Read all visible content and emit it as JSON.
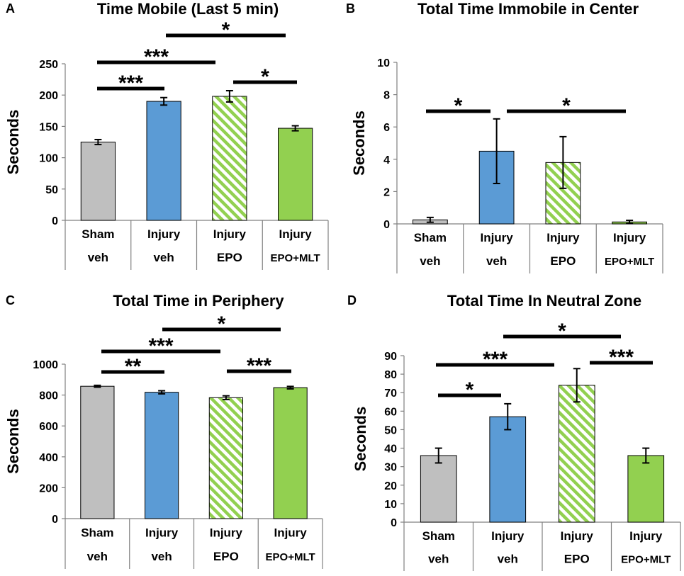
{
  "colors": {
    "sham": "#bfbfbf",
    "injury_veh": "#5b9bd5",
    "injury_epo_stripe": "#92d050",
    "injury_epo_mlt": "#92d050",
    "axis": "#808080",
    "bar_stroke": "#000000"
  },
  "chart_data": [
    {
      "panel": "A",
      "type": "bar",
      "title": "Time Mobile (Last 5 min)",
      "ylabel": "Seconds",
      "ylim": [
        0,
        250
      ],
      "yticks": [
        0,
        50,
        100,
        150,
        200,
        250
      ],
      "categories": [
        {
          "line1": "Sham",
          "line2": "veh"
        },
        {
          "line1": "Injury",
          "line2": "veh"
        },
        {
          "line1": "Injury",
          "line2": "EPO"
        },
        {
          "line1": "Injury",
          "line2": "EPO+MLT"
        }
      ],
      "values": [
        125,
        190,
        198,
        147
      ],
      "errors": [
        4,
        6,
        9,
        4
      ],
      "significance": [
        {
          "from": 0,
          "to": 1,
          "label": "***"
        },
        {
          "from": 0,
          "to": 2,
          "label": "***"
        },
        {
          "from": 1,
          "to": 3,
          "label": "*"
        },
        {
          "from": 2,
          "to": 3,
          "label": "*"
        }
      ]
    },
    {
      "panel": "B",
      "type": "bar",
      "title": "Total Time Immobile in Center",
      "ylabel": "Seconds",
      "ylim": [
        0,
        10
      ],
      "yticks": [
        0,
        2,
        4,
        6,
        8,
        10
      ],
      "categories": [
        {
          "line1": "Sham",
          "line2": "veh"
        },
        {
          "line1": "Injury",
          "line2": "veh"
        },
        {
          "line1": "Injury",
          "line2": "EPO"
        },
        {
          "line1": "Injury",
          "line2": "EPO+MLT"
        }
      ],
      "values": [
        0.25,
        4.5,
        3.8,
        0.12
      ],
      "errors": [
        0.15,
        2.0,
        1.6,
        0.1
      ],
      "significance": [
        {
          "from": 0,
          "to": 1,
          "label": "*"
        },
        {
          "from": 1,
          "to": 3,
          "label": "*"
        }
      ]
    },
    {
      "panel": "C",
      "type": "bar",
      "title": "Total Time in Periphery",
      "ylabel": "Seconds",
      "ylim": [
        0,
        1000
      ],
      "yticks": [
        0,
        200,
        400,
        600,
        800,
        1000
      ],
      "categories": [
        {
          "line1": "Sham",
          "line2": "veh"
        },
        {
          "line1": "Injury",
          "line2": "veh"
        },
        {
          "line1": "Injury",
          "line2": "EPO"
        },
        {
          "line1": "Injury",
          "line2": "EPO+MLT"
        }
      ],
      "values": [
        857,
        818,
        783,
        848
      ],
      "errors": [
        6,
        10,
        12,
        8
      ],
      "significance": [
        {
          "from": 0,
          "to": 1,
          "label": "**"
        },
        {
          "from": 0,
          "to": 2,
          "label": "***"
        },
        {
          "from": 1,
          "to": 3,
          "label": "*"
        },
        {
          "from": 2,
          "to": 3,
          "label": "***"
        }
      ]
    },
    {
      "panel": "D",
      "type": "bar",
      "title": "Total Time In Neutral Zone",
      "ylabel": "Seconds",
      "ylim": [
        0,
        90
      ],
      "yticks": [
        0,
        10,
        20,
        30,
        40,
        50,
        60,
        70,
        80,
        90
      ],
      "categories": [
        {
          "line1": "Sham",
          "line2": "veh"
        },
        {
          "line1": "Injury",
          "line2": "veh"
        },
        {
          "line1": "Injury",
          "line2": "EPO"
        },
        {
          "line1": "Injury",
          "line2": "EPO+MLT"
        }
      ],
      "values": [
        36,
        57,
        74,
        36
      ],
      "errors": [
        4,
        7,
        9,
        4
      ],
      "significance": [
        {
          "from": 0,
          "to": 1,
          "label": "*"
        },
        {
          "from": 0,
          "to": 2,
          "label": "***"
        },
        {
          "from": 1,
          "to": 3,
          "label": "*"
        },
        {
          "from": 2,
          "to": 3,
          "label": "***"
        }
      ]
    }
  ]
}
